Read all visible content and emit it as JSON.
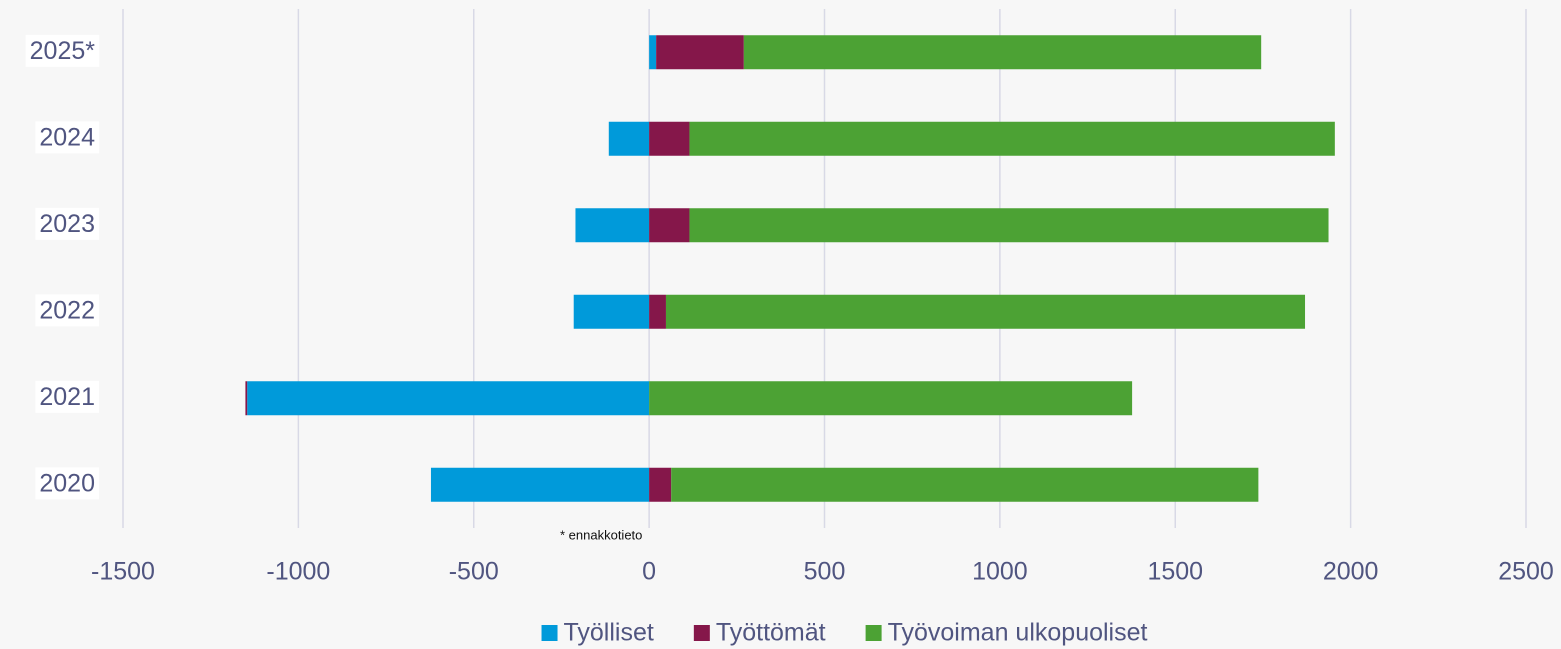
{
  "chart_data": {
    "type": "bar",
    "orientation": "horizontal",
    "stacked": true,
    "categories": [
      "2020",
      "2021",
      "2022",
      "2023",
      "2024",
      "2025*"
    ],
    "series": [
      {
        "name": "Työlliset",
        "color": "#009ada",
        "values": [
          -622,
          -1146,
          -215,
          -210,
          -115,
          20
        ]
      },
      {
        "name": "Työttömät",
        "color": "#85174a",
        "values": [
          63,
          -5,
          48,
          115,
          115,
          250
        ]
      },
      {
        "name": "Työvoiman ulkopuoliset",
        "color": "#4ca234",
        "values": [
          1674,
          1377,
          1822,
          1822,
          1840,
          1475
        ]
      }
    ],
    "xlim": [
      -1500,
      2500
    ],
    "xticks": [
      -1500,
      -1000,
      -500,
      0,
      500,
      1000,
      1500,
      2000,
      2500
    ],
    "grid": true,
    "legend": "bottom",
    "annotation": "* ennakkotieto"
  }
}
